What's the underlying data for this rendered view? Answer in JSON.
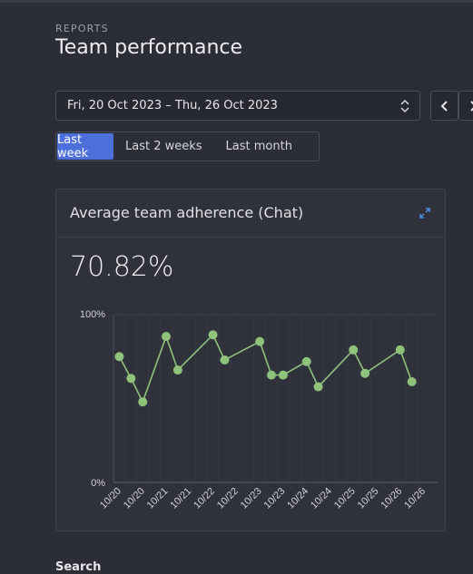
{
  "header": {
    "eyebrow": "REPORTS",
    "title": "Team performance"
  },
  "date_range": {
    "value": "Fri, 20 Oct 2023 – Thu, 26 Oct 2023"
  },
  "range_options": [
    {
      "label": "Last week",
      "active": true
    },
    {
      "label": "Last 2 weeks",
      "active": false
    },
    {
      "label": "Last month",
      "active": false
    }
  ],
  "card": {
    "title": "Average team adherence (Chat)",
    "metric": "70.82%"
  },
  "chart_data": {
    "type": "line",
    "ylim": [
      0,
      100
    ],
    "y_ticks": [
      "100%",
      "0%"
    ],
    "categories": [
      "10/20",
      "10/20",
      "10/21",
      "10/21",
      "10/22",
      "10/22",
      "10/23",
      "10/23",
      "10/24",
      "10/24",
      "10/25",
      "10/25",
      "10/26",
      "10/26"
    ],
    "x": [
      0.5,
      1.0,
      1.5,
      2.0,
      2.5,
      3.0,
      3.5,
      4.0,
      4.5,
      5.0,
      5.5,
      6.0,
      6.5,
      7.0,
      7.5,
      8.0,
      8.5,
      9.0,
      9.5,
      10.0,
      10.5,
      11.0,
      11.5,
      12.0,
      12.5,
      13.0,
      13.5
    ],
    "points": [
      {
        "t": 0.75,
        "y": 75
      },
      {
        "t": 1.25,
        "y": 62
      },
      {
        "t": 1.75,
        "y": 48
      },
      {
        "t": 2.75,
        "y": 87
      },
      {
        "t": 3.25,
        "y": 67
      },
      {
        "t": 4.75,
        "y": 88
      },
      {
        "t": 5.25,
        "y": 73
      },
      {
        "t": 6.75,
        "y": 84
      },
      {
        "t": 7.25,
        "y": 64
      },
      {
        "t": 7.75,
        "y": 64
      },
      {
        "t": 8.75,
        "y": 72
      },
      {
        "t": 9.25,
        "y": 57
      },
      {
        "t": 10.75,
        "y": 79
      },
      {
        "t": 11.25,
        "y": 65
      },
      {
        "t": 12.75,
        "y": 79
      },
      {
        "t": 13.25,
        "y": 60
      }
    ],
    "line_color": "#8fc27b",
    "grid": true
  },
  "footer": {
    "search_label": "Search"
  }
}
